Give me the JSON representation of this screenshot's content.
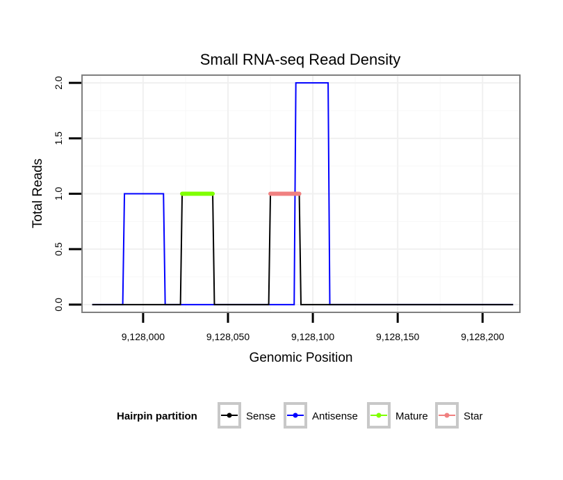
{
  "chart_data": {
    "type": "line",
    "title": "Small RNA-seq Read Density",
    "xlabel": "Genomic Position",
    "ylabel": "Total Reads",
    "xlim": [
      9127964,
      9128222
    ],
    "ylim": [
      -0.07,
      2.07
    ],
    "x_ticks": [
      9128000,
      9128050,
      9128100,
      9128150,
      9128200
    ],
    "x_tick_labels": [
      "9,128,000",
      "9,128,050",
      "9,128,100",
      "9,128,150",
      "9,128,200"
    ],
    "y_ticks": [
      0,
      0.5,
      1,
      1.5,
      2
    ],
    "y_tick_labels": [
      "0.0",
      "0.5",
      "1.0",
      "1.5",
      "2.0"
    ],
    "grid": true,
    "legend": {
      "title": "Hairpin partition",
      "position": "bottom",
      "entries": [
        "Sense",
        "Antisense",
        "Mature",
        "Star"
      ]
    },
    "series": [
      {
        "name": "Antisense",
        "color": "#0000ff",
        "width": "thin",
        "x": [
          9127970,
          9127988,
          9127989,
          9128012,
          9128013,
          9128040,
          9128041,
          9128075,
          9128076,
          9128089,
          9128090,
          9128109,
          9128110,
          9128218
        ],
        "y": [
          0,
          0,
          1,
          1,
          0,
          0,
          0,
          0,
          0,
          0,
          2,
          2,
          0,
          0
        ]
      },
      {
        "name": "Sense",
        "color": "#000000",
        "width": "thin",
        "x": [
          9127970,
          9128022,
          9128023,
          9128041,
          9128042,
          9128074,
          9128075,
          9128092,
          9128093,
          9128218
        ],
        "y": [
          0,
          0,
          1,
          1,
          0,
          0,
          1,
          1,
          0,
          0
        ]
      },
      {
        "name": "Mature",
        "color": "#7fff00",
        "width": "thick",
        "x": [
          9128023,
          9128041
        ],
        "y": [
          1,
          1
        ]
      },
      {
        "name": "Star",
        "color": "#f08080",
        "width": "thick",
        "x": [
          9128075,
          9128092
        ],
        "y": [
          1,
          1
        ]
      }
    ]
  }
}
